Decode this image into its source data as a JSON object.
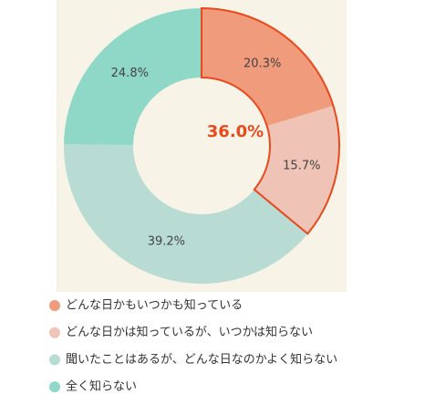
{
  "chart_data": {
    "type": "donut",
    "categories": [
      "どんな日かもいつかも知っている",
      "どんな日かは知っているが、いつかは知らない",
      "聞いたことはあるが、どんな日なのかよく知らない",
      "全く知らない"
    ],
    "values": [
      20.3,
      15.7,
      39.2,
      24.8
    ],
    "value_labels": [
      "20.3%",
      "15.7%",
      "39.2%",
      "24.8%"
    ],
    "colors": [
      "#ef9b7c",
      "#efc4b6",
      "#b8dbd3",
      "#8fd8c8"
    ],
    "center_label": "36.0%",
    "highlight_color": "#e8491d"
  }
}
